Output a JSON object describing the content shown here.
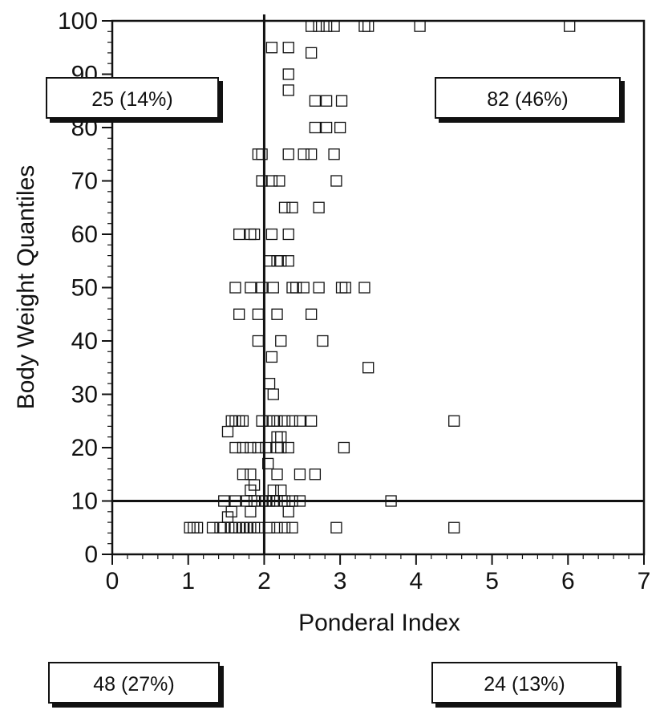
{
  "chart_data": {
    "type": "scatter",
    "xlabel": "Ponderal Index",
    "ylabel": "Body Weight Quantiles",
    "xlim": [
      0,
      7
    ],
    "ylim": [
      0,
      100
    ],
    "xticks": [
      0,
      1,
      2,
      3,
      4,
      5,
      6,
      7
    ],
    "yticks": [
      0,
      10,
      20,
      30,
      40,
      50,
      60,
      70,
      80,
      90,
      100
    ],
    "marker": "open-square",
    "grid": false,
    "reference_lines": {
      "x": 2,
      "y": 10
    },
    "quadrant_labels": {
      "top_left": "25 (14%)",
      "top_right": "82 (46%)",
      "bottom_left": "48 (27%)",
      "bottom_right": "24 (13%)"
    },
    "points": [
      [
        2.62,
        99
      ],
      [
        2.72,
        99
      ],
      [
        2.82,
        99
      ],
      [
        2.92,
        99
      ],
      [
        3.32,
        99
      ],
      [
        3.37,
        99
      ],
      [
        4.05,
        99
      ],
      [
        6.02,
        99
      ],
      [
        2.1,
        95
      ],
      [
        2.32,
        95
      ],
      [
        2.62,
        94
      ],
      [
        2.32,
        90
      ],
      [
        2.32,
        87
      ],
      [
        2.67,
        85
      ],
      [
        2.82,
        85
      ],
      [
        3.02,
        85
      ],
      [
        2.67,
        80
      ],
      [
        2.82,
        80
      ],
      [
        3.0,
        80
      ],
      [
        1.92,
        75
      ],
      [
        1.97,
        75
      ],
      [
        2.32,
        75
      ],
      [
        2.52,
        75
      ],
      [
        2.62,
        75
      ],
      [
        2.92,
        75
      ],
      [
        1.97,
        70
      ],
      [
        2.1,
        70
      ],
      [
        2.2,
        70
      ],
      [
        2.95,
        70
      ],
      [
        2.27,
        65
      ],
      [
        2.37,
        65
      ],
      [
        2.72,
        65
      ],
      [
        1.67,
        60
      ],
      [
        1.82,
        60
      ],
      [
        1.87,
        60
      ],
      [
        2.1,
        60
      ],
      [
        2.32,
        60
      ],
      [
        2.07,
        55
      ],
      [
        2.17,
        55
      ],
      [
        2.22,
        55
      ],
      [
        2.32,
        55
      ],
      [
        1.62,
        50
      ],
      [
        1.82,
        50
      ],
      [
        1.97,
        50
      ],
      [
        2.12,
        50
      ],
      [
        2.37,
        50
      ],
      [
        2.42,
        50
      ],
      [
        2.52,
        50
      ],
      [
        2.72,
        50
      ],
      [
        3.02,
        50
      ],
      [
        3.07,
        50
      ],
      [
        3.32,
        50
      ],
      [
        1.67,
        45
      ],
      [
        1.92,
        45
      ],
      [
        2.17,
        45
      ],
      [
        2.62,
        45
      ],
      [
        1.92,
        40
      ],
      [
        2.22,
        40
      ],
      [
        2.77,
        40
      ],
      [
        2.1,
        37
      ],
      [
        3.37,
        35
      ],
      [
        2.07,
        32
      ],
      [
        2.12,
        30
      ],
      [
        1.57,
        25
      ],
      [
        1.62,
        25
      ],
      [
        1.67,
        25
      ],
      [
        1.72,
        25
      ],
      [
        1.97,
        25
      ],
      [
        2.07,
        25
      ],
      [
        2.12,
        25
      ],
      [
        2.17,
        25
      ],
      [
        2.27,
        25
      ],
      [
        2.37,
        25
      ],
      [
        2.47,
        25
      ],
      [
        2.62,
        25
      ],
      [
        4.5,
        25
      ],
      [
        1.52,
        23
      ],
      [
        2.17,
        22
      ],
      [
        2.22,
        22
      ],
      [
        1.62,
        20
      ],
      [
        1.72,
        20
      ],
      [
        1.82,
        20
      ],
      [
        1.92,
        20
      ],
      [
        2.02,
        20
      ],
      [
        2.17,
        20
      ],
      [
        2.22,
        20
      ],
      [
        2.32,
        20
      ],
      [
        3.05,
        20
      ],
      [
        2.05,
        17
      ],
      [
        1.72,
        15
      ],
      [
        1.82,
        15
      ],
      [
        2.17,
        15
      ],
      [
        2.47,
        15
      ],
      [
        2.67,
        15
      ],
      [
        1.87,
        13
      ],
      [
        1.82,
        12
      ],
      [
        2.12,
        12
      ],
      [
        2.22,
        12
      ],
      [
        1.47,
        10
      ],
      [
        1.62,
        10
      ],
      [
        1.77,
        10
      ],
      [
        1.87,
        10
      ],
      [
        1.97,
        10
      ],
      [
        2.02,
        10
      ],
      [
        2.07,
        10
      ],
      [
        2.12,
        10
      ],
      [
        2.17,
        10
      ],
      [
        2.27,
        10
      ],
      [
        2.37,
        10
      ],
      [
        2.47,
        10
      ],
      [
        3.67,
        10
      ],
      [
        1.57,
        8
      ],
      [
        1.82,
        8
      ],
      [
        2.32,
        8
      ],
      [
        1.52,
        7
      ],
      [
        1.02,
        5
      ],
      [
        1.07,
        5
      ],
      [
        1.12,
        5
      ],
      [
        1.32,
        5
      ],
      [
        1.42,
        5
      ],
      [
        1.47,
        5
      ],
      [
        1.57,
        5
      ],
      [
        1.62,
        5
      ],
      [
        1.67,
        5
      ],
      [
        1.72,
        5
      ],
      [
        1.77,
        5
      ],
      [
        1.82,
        5
      ],
      [
        1.87,
        5
      ],
      [
        1.92,
        5
      ],
      [
        2.07,
        5
      ],
      [
        2.17,
        5
      ],
      [
        2.27,
        5
      ],
      [
        2.37,
        5
      ],
      [
        2.95,
        5
      ],
      [
        4.5,
        5
      ]
    ]
  }
}
